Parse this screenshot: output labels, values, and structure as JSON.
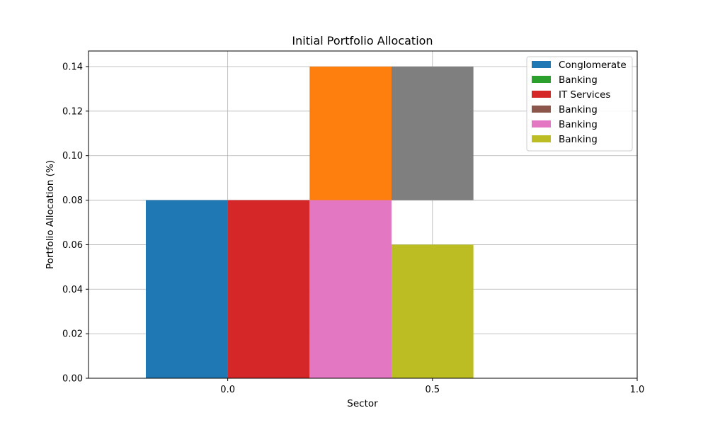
{
  "chart_data": {
    "type": "bar",
    "title": "Initial Portfolio Allocation",
    "xlabel": "Sector",
    "ylabel": "Portfolio Allocation (%)",
    "xlim": [
      -0.34,
      1.0
    ],
    "ylim": [
      0,
      0.147
    ],
    "x_ticks": [
      {
        "value": 0.0,
        "label": "0.0"
      },
      {
        "value": 0.5,
        "label": "0.5"
      },
      {
        "value": 1.0,
        "label": "1.0"
      }
    ],
    "y_ticks": [
      {
        "value": 0.0,
        "label": "0.00"
      },
      {
        "value": 0.02,
        "label": "0.02"
      },
      {
        "value": 0.04,
        "label": "0.04"
      },
      {
        "value": 0.06,
        "label": "0.06"
      },
      {
        "value": 0.08,
        "label": "0.08"
      },
      {
        "value": 0.1,
        "label": "0.10"
      },
      {
        "value": 0.12,
        "label": "0.12"
      },
      {
        "value": 0.14,
        "label": "0.14"
      }
    ],
    "grid": true,
    "legend_position": "top-right",
    "series": [
      {
        "name": "Conglomerate",
        "color": "#1f77b4",
        "x": -0.2,
        "width": 0.2,
        "bottom": 0,
        "value": 0.08
      },
      {
        "name": "",
        "color": "#ff7f0e",
        "x": 0.2,
        "width": 0.2,
        "bottom": 0.08,
        "value": 0.06
      },
      {
        "name": "Banking",
        "color": "#2ca02c",
        "x": 0.4,
        "width": 0.2,
        "bottom": 0.08,
        "value": 0
      },
      {
        "name": "IT Services",
        "color": "#d62728",
        "x": 0.0,
        "width": 0.2,
        "bottom": 0,
        "value": 0.08
      },
      {
        "name": "Banking",
        "color": "#8c564b",
        "x": 0.6,
        "width": 0.2,
        "bottom": 0.08,
        "value": 0
      },
      {
        "name": "Banking",
        "color": "#e377c2",
        "x": 0.2,
        "width": 0.2,
        "bottom": 0,
        "value": 0.08
      },
      {
        "name": "",
        "color": "#7f7f7f",
        "x": 0.4,
        "width": 0.2,
        "bottom": 0.08,
        "value": 0.06
      },
      {
        "name": "Banking",
        "color": "#bcbd22",
        "x": 0.4,
        "width": 0.2,
        "bottom": 0,
        "value": 0.06
      }
    ],
    "legend": [
      {
        "label": "Conglomerate",
        "color": "#1f77b4"
      },
      {
        "label": "Banking",
        "color": "#2ca02c"
      },
      {
        "label": "IT Services",
        "color": "#d62728"
      },
      {
        "label": "Banking",
        "color": "#8c564b"
      },
      {
        "label": "Banking",
        "color": "#e377c2"
      },
      {
        "label": "Banking",
        "color": "#bcbd22"
      }
    ]
  }
}
